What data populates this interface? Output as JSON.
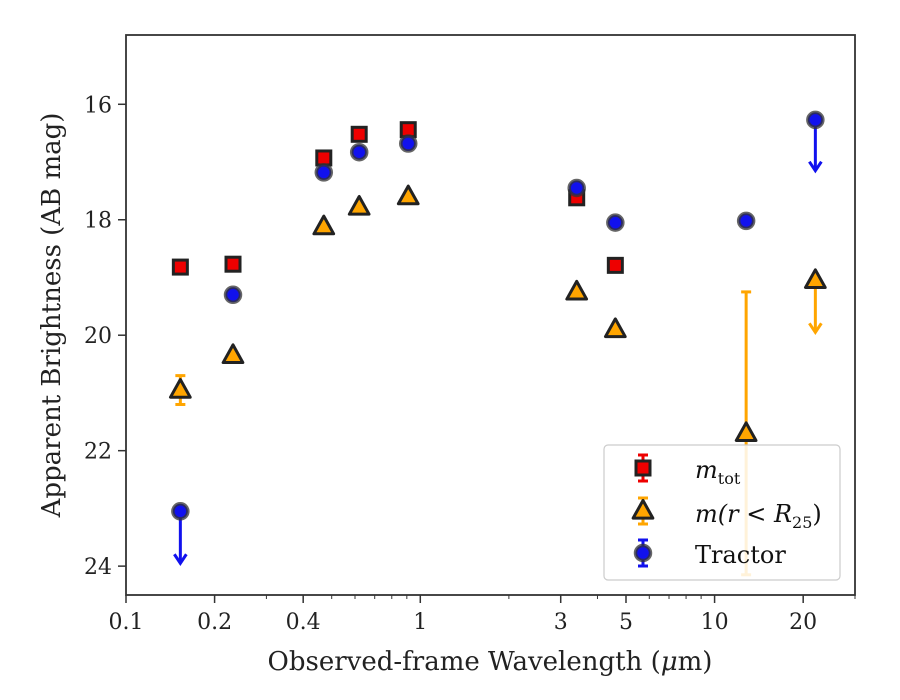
{
  "chart_data": {
    "type": "scatter",
    "xlabel_main": "Observed-frame Wavelength (",
    "xlabel_mu": "μ",
    "xlabel_end": "m)",
    "ylabel": "Apparent Brightness (AB mag)",
    "x_scale": "log",
    "xlim": [
      0.1,
      30
    ],
    "ylim": [
      24.5,
      14.8
    ],
    "y_inverted": true,
    "x_ticks": [
      {
        "value": 0.1,
        "label": "0.1"
      },
      {
        "value": 0.2,
        "label": "0.2"
      },
      {
        "value": 0.4,
        "label": "0.4"
      },
      {
        "value": 1,
        "label": "1"
      },
      {
        "value": 3,
        "label": "3"
      },
      {
        "value": 5,
        "label": "5"
      },
      {
        "value": 10,
        "label": "10"
      },
      {
        "value": 20,
        "label": "20"
      }
    ],
    "y_ticks": [
      16,
      18,
      20,
      22,
      24
    ],
    "legend_position": "lower-right",
    "series": [
      {
        "name": "m_tot",
        "legend_main": "m",
        "legend_sub": "tot",
        "marker": "square",
        "color": "#ee0000",
        "points": [
          {
            "x": 0.153,
            "y": 18.82,
            "err": 0.05
          },
          {
            "x": 0.231,
            "y": 18.77,
            "err": 0.05
          },
          {
            "x": 0.47,
            "y": 16.93,
            "err": 0.05
          },
          {
            "x": 0.62,
            "y": 16.52,
            "err": 0.05
          },
          {
            "x": 0.91,
            "y": 16.44,
            "err": 0.05
          },
          {
            "x": 3.4,
            "y": 17.62,
            "err": 0.05
          },
          {
            "x": 4.6,
            "y": 18.79,
            "err": 0.05
          }
        ]
      },
      {
        "name": "m(r < R_25)",
        "legend_main": "m(r < R",
        "legend_sub": "25",
        "legend_end": ")",
        "marker": "triangle",
        "color": "#ffa500",
        "points": [
          {
            "x": 0.153,
            "y": 20.95,
            "err": 0.25
          },
          {
            "x": 0.231,
            "y": 20.35,
            "err": 0.05
          },
          {
            "x": 0.47,
            "y": 18.12,
            "err": 0.05
          },
          {
            "x": 0.62,
            "y": 17.78,
            "err": 0.05
          },
          {
            "x": 0.91,
            "y": 17.6,
            "err": 0.05
          },
          {
            "x": 3.4,
            "y": 19.25,
            "err": 0.05
          },
          {
            "x": 4.6,
            "y": 19.9,
            "err": 0.05
          },
          {
            "x": 12.8,
            "y": 21.7,
            "err_low": 2.45,
            "err_high": 2.45
          },
          {
            "x": 22.0,
            "y": 19.05,
            "upper_limit": true,
            "arrow_to": 19.95
          }
        ]
      },
      {
        "name": "Tractor",
        "legend_main": "Tractor",
        "marker": "circle",
        "color": "#1111ee",
        "points": [
          {
            "x": 0.153,
            "y": 23.05,
            "upper_limit": true,
            "arrow_to": 23.95
          },
          {
            "x": 0.231,
            "y": 19.3,
            "err": 0.05
          },
          {
            "x": 0.47,
            "y": 17.18,
            "err": 0.05
          },
          {
            "x": 0.62,
            "y": 16.83,
            "err": 0.05
          },
          {
            "x": 0.91,
            "y": 16.68,
            "err": 0.05
          },
          {
            "x": 3.4,
            "y": 17.45,
            "err": 0.05
          },
          {
            "x": 4.6,
            "y": 18.05,
            "err": 0.05
          },
          {
            "x": 12.8,
            "y": 18.02,
            "err": 0.05
          },
          {
            "x": 22.0,
            "y": 16.27,
            "upper_limit": true,
            "arrow_to": 17.15
          }
        ]
      }
    ]
  }
}
